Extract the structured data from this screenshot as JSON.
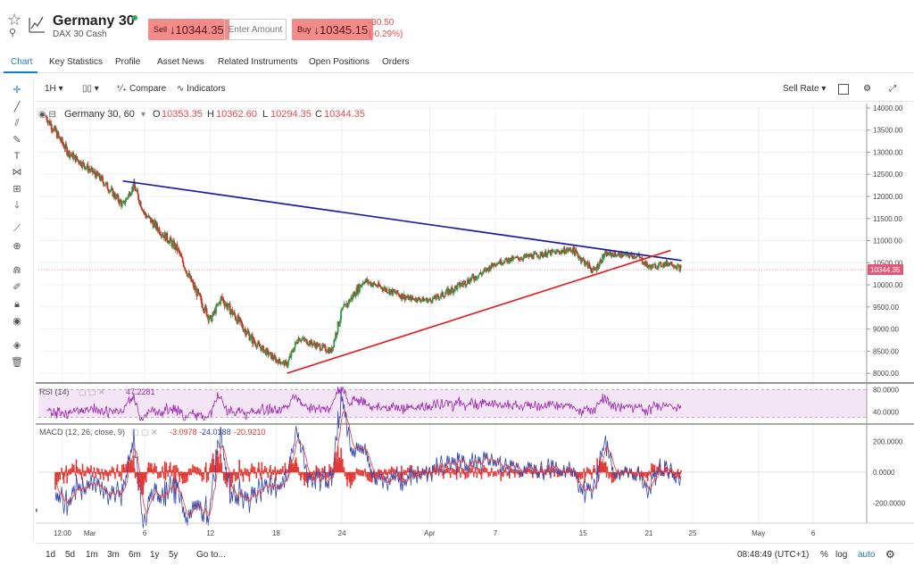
{
  "instrument": {
    "name": "Germany 30",
    "subtitle": "DAX 30 Cash"
  },
  "trade": {
    "sell_label": "Sell",
    "sell_price": "10344.35",
    "amount_placeholder": "Enter Amount",
    "buy_label": "Buy",
    "buy_price": "10345.15",
    "change": "-30.50",
    "change_pct": "(-0.29%)"
  },
  "tabs": [
    {
      "label": "Chart",
      "active": true
    },
    {
      "label": "Key Statistics"
    },
    {
      "label": "Profile"
    },
    {
      "label": "Asset News"
    },
    {
      "label": "Related Instruments"
    },
    {
      "label": "Open Positions"
    },
    {
      "label": "Orders"
    }
  ],
  "toolbar": {
    "interval": "1H",
    "compare": "Compare",
    "indicators": "Indicators",
    "price_type": "Sell Rate"
  },
  "legend": {
    "symbol": "Germany 30, 60",
    "o_label": "O",
    "o": "10353.35",
    "h_label": "H",
    "h": "10362.60",
    "l_label": "L",
    "l": "10294.35",
    "c_label": "C",
    "c": "10344.35"
  },
  "rsi": {
    "label": "RSI (14)",
    "value": "47.2281"
  },
  "macd": {
    "label": "MACD (12, 26, close, 9)",
    "hist": "-3.0978",
    "macd": "-24.0188",
    "signal": "-20.9210"
  },
  "price_axis": {
    "ticks": [
      "14000.00",
      "13500.00",
      "13000.00",
      "12500.00",
      "12000.00",
      "11500.00",
      "11000.00",
      "10500.00",
      "10000.00",
      "9500.00",
      "9000.00",
      "8500.00",
      "8000.00"
    ],
    "last_price_label": "10344.35"
  },
  "rsi_axis": {
    "ticks": [
      "80.0000",
      "40.0000"
    ]
  },
  "macd_axis": {
    "ticks": [
      "200.0000",
      "0.0000",
      "-200.0000"
    ]
  },
  "time_axis": {
    "labels": [
      "12:00",
      "Mar",
      "6",
      "12",
      "18",
      "24",
      "Apr",
      "7",
      "15",
      "21",
      "25",
      "May",
      "6"
    ]
  },
  "bottom_toolbar": {
    "ranges": [
      "1d",
      "5d",
      "1m",
      "3m",
      "6m",
      "1y",
      "5y"
    ],
    "goto": "Go to...",
    "clock": "08:48:49 (UTC+1)",
    "pct": "%",
    "log": "log",
    "auto": "auto"
  },
  "colors": {
    "accent": "#1a7fbf",
    "sell": "#f48b8b",
    "up": "#2e9b4a",
    "down": "#c0392b",
    "downtrend": "#1c1ca8",
    "uptrend": "#e02020",
    "rsi": "#9c27b0"
  },
  "chart_data": {
    "type": "candlestick",
    "interval": "60 min",
    "price_path": [
      [
        "Feb 26",
        13800
      ],
      [
        "Feb 28",
        13000
      ],
      [
        "Mar 2",
        12400
      ],
      [
        "Mar 4",
        11800
      ],
      [
        "Mar 5",
        12250
      ],
      [
        "Mar 6",
        11600
      ],
      [
        "Mar 9",
        10800
      ],
      [
        "Mar 10",
        10200
      ],
      [
        "Mar 12",
        9200
      ],
      [
        "Mar 13",
        9700
      ],
      [
        "Mar 16",
        8700
      ],
      [
        "Mar 18",
        8300
      ],
      [
        "Mar 19",
        8200
      ],
      [
        "Mar 20",
        8800
      ],
      [
        "Mar 23",
        8500
      ],
      [
        "Mar 24",
        9400
      ],
      [
        "Mar 26",
        10100
      ],
      [
        "Mar 30",
        9700
      ],
      [
        "Apr 1",
        9650
      ],
      [
        "Apr 2",
        9750
      ],
      [
        "Apr 6",
        10300
      ],
      [
        "Apr 7",
        10500
      ],
      [
        "Apr 9",
        10600
      ],
      [
        "Apr 14",
        10800
      ],
      [
        "Apr 16",
        10300
      ],
      [
        "Apr 17",
        10700
      ],
      [
        "Apr 20",
        10650
      ],
      [
        "Apr 21",
        10400
      ],
      [
        "Apr 23",
        10500
      ],
      [
        "Apr 24",
        10344.35
      ]
    ],
    "trendlines": [
      {
        "from": [
          "Mar 4",
          12350
        ],
        "to": [
          "Apr 24",
          10550
        ],
        "color": "#1c1ca8"
      },
      {
        "from": [
          "Mar 19",
          8000
        ],
        "to": [
          "Apr 23",
          10780
        ],
        "color": "#e02020"
      }
    ],
    "y_range": [
      7800,
      14100
    ]
  }
}
